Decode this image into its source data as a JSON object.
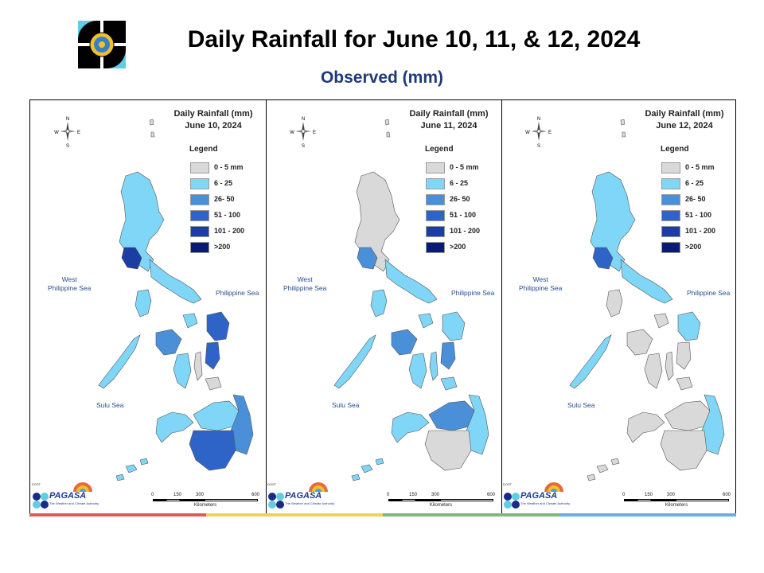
{
  "header": {
    "title": "Daily Rainfall for June 10, 11, & 12, 2024",
    "subtitle": "Observed (mm)"
  },
  "panels": [
    {
      "title_line1": "Daily Rainfall (mm)",
      "title_line2": "June 10, 2024"
    },
    {
      "title_line1": "Daily Rainfall (mm)",
      "title_line2": "June 11, 2024"
    },
    {
      "title_line1": "Daily Rainfall (mm)",
      "title_line2": "June 12, 2024"
    }
  ],
  "legend": {
    "title": "Legend",
    "classes": [
      {
        "label": "0 - 5 mm",
        "color": "#d9d9d9"
      },
      {
        "label": "6 - 25",
        "color": "#7fd6f7"
      },
      {
        "label": "26- 50",
        "color": "#4a90d9"
      },
      {
        "label": "51 - 100",
        "color": "#2e64c8"
      },
      {
        "label": "101 - 200",
        "color": "#1c3da3"
      },
      {
        "label": ">200",
        "color": "#0a1a7a"
      }
    ]
  },
  "seas": {
    "west": "West Philippine Sea",
    "west_line1": "West",
    "west_line2": "Philippine Sea",
    "philippine": "Philippine Sea",
    "sulu": "Sulu Sea"
  },
  "compass": {
    "n": "N",
    "s": "S",
    "e": "E",
    "w": "W"
  },
  "scale": {
    "ticks": [
      "0",
      "150",
      "300",
      "600"
    ],
    "unit": "Kilometers"
  },
  "branding": {
    "agency_small": "DOST",
    "agency": "PAGASA",
    "tagline": "The Weather and Climate Authority"
  },
  "footer_colors": [
    "#e05a5a",
    "#f2d05a",
    "#7db87d",
    "#6aaedb"
  ]
}
